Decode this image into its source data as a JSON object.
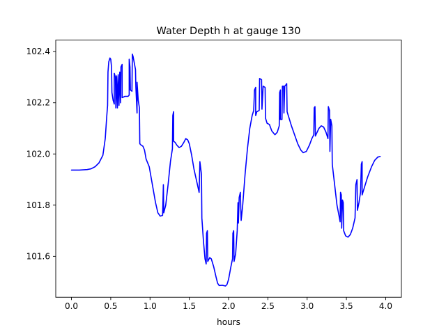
{
  "chart_data": {
    "type": "line",
    "title": "Water Depth h at gauge 130",
    "xlabel": "hours",
    "ylabel": "",
    "xlim": [
      -0.2,
      4.2
    ],
    "ylim": [
      101.44,
      102.445
    ],
    "grid": false,
    "xticks": [
      0.0,
      0.5,
      1.0,
      1.5,
      2.0,
      2.5,
      3.0,
      3.5,
      4.0
    ],
    "xtick_labels": [
      "0.0",
      "0.5",
      "1.0",
      "1.5",
      "2.0",
      "2.5",
      "3.0",
      "3.5",
      "4.0"
    ],
    "yticks": [
      101.6,
      101.8,
      102.0,
      102.2,
      102.4
    ],
    "ytick_labels": [
      "101.6",
      "101.8",
      "102.0",
      "102.2",
      "102.4"
    ],
    "series": [
      {
        "color": "#0000ff",
        "points": [
          [
            0.0,
            101.937
          ],
          [
            0.1,
            101.937
          ],
          [
            0.2,
            101.939
          ],
          [
            0.25,
            101.942
          ],
          [
            0.3,
            101.95
          ],
          [
            0.35,
            101.965
          ],
          [
            0.4,
            101.995
          ],
          [
            0.43,
            102.06
          ],
          [
            0.45,
            102.15
          ],
          [
            0.46,
            102.19
          ],
          [
            0.465,
            102.32
          ],
          [
            0.475,
            102.36
          ],
          [
            0.49,
            102.375
          ],
          [
            0.5,
            102.37
          ],
          [
            0.51,
            102.34
          ],
          [
            0.515,
            102.24
          ],
          [
            0.53,
            102.21
          ],
          [
            0.545,
            102.195
          ],
          [
            0.545,
            102.315
          ],
          [
            0.56,
            102.3
          ],
          [
            0.565,
            102.18
          ],
          [
            0.575,
            102.305
          ],
          [
            0.585,
            102.18
          ],
          [
            0.595,
            102.31
          ],
          [
            0.605,
            102.19
          ],
          [
            0.615,
            102.32
          ],
          [
            0.625,
            102.2
          ],
          [
            0.63,
            102.34
          ],
          [
            0.645,
            102.35
          ],
          [
            0.645,
            102.22
          ],
          [
            0.68,
            102.225
          ],
          [
            0.72,
            102.225
          ],
          [
            0.735,
            102.23
          ],
          [
            0.735,
            102.37
          ],
          [
            0.745,
            102.34
          ],
          [
            0.75,
            102.25
          ],
          [
            0.77,
            102.245
          ],
          [
            0.775,
            102.39
          ],
          [
            0.785,
            102.38
          ],
          [
            0.8,
            102.355
          ],
          [
            0.815,
            102.33
          ],
          [
            0.82,
            102.26
          ],
          [
            0.835,
            102.16
          ],
          [
            0.835,
            102.28
          ],
          [
            0.85,
            102.21
          ],
          [
            0.865,
            102.18
          ],
          [
            0.87,
            102.04
          ],
          [
            0.885,
            102.035
          ],
          [
            0.91,
            102.03
          ],
          [
            0.93,
            102.015
          ],
          [
            0.95,
            101.98
          ],
          [
            0.99,
            101.95
          ],
          [
            1.03,
            101.88
          ],
          [
            1.07,
            101.81
          ],
          [
            1.1,
            101.77
          ],
          [
            1.13,
            101.757
          ],
          [
            1.16,
            101.76
          ],
          [
            1.17,
            101.88
          ],
          [
            1.175,
            101.77
          ],
          [
            1.2,
            101.8
          ],
          [
            1.23,
            101.88
          ],
          [
            1.26,
            101.97
          ],
          [
            1.285,
            102.02
          ],
          [
            1.29,
            102.15
          ],
          [
            1.3,
            102.165
          ],
          [
            1.3,
            102.05
          ],
          [
            1.32,
            102.045
          ],
          [
            1.34,
            102.035
          ],
          [
            1.37,
            102.025
          ],
          [
            1.4,
            102.03
          ],
          [
            1.43,
            102.045
          ],
          [
            1.455,
            102.06
          ],
          [
            1.48,
            102.055
          ],
          [
            1.5,
            102.04
          ],
          [
            1.53,
            101.995
          ],
          [
            1.56,
            101.94
          ],
          [
            1.6,
            101.885
          ],
          [
            1.625,
            101.85
          ],
          [
            1.635,
            101.97
          ],
          [
            1.655,
            101.92
          ],
          [
            1.66,
            101.75
          ],
          [
            1.68,
            101.66
          ],
          [
            1.7,
            101.59
          ],
          [
            1.715,
            101.57
          ],
          [
            1.72,
            101.69
          ],
          [
            1.73,
            101.7
          ],
          [
            1.735,
            101.58
          ],
          [
            1.76,
            101.595
          ],
          [
            1.78,
            101.59
          ],
          [
            1.81,
            101.56
          ],
          [
            1.84,
            101.52
          ],
          [
            1.86,
            101.495
          ],
          [
            1.88,
            101.486
          ],
          [
            1.92,
            101.487
          ],
          [
            1.96,
            101.484
          ],
          [
            1.98,
            101.49
          ],
          [
            2.0,
            101.51
          ],
          [
            2.03,
            101.56
          ],
          [
            2.05,
            101.59
          ],
          [
            2.055,
            101.69
          ],
          [
            2.065,
            101.7
          ],
          [
            2.07,
            101.58
          ],
          [
            2.09,
            101.61
          ],
          [
            2.11,
            101.7
          ],
          [
            2.12,
            101.81
          ],
          [
            2.125,
            101.73
          ],
          [
            2.135,
            101.83
          ],
          [
            2.15,
            101.85
          ],
          [
            2.16,
            101.74
          ],
          [
            2.18,
            101.8
          ],
          [
            2.21,
            101.92
          ],
          [
            2.24,
            102.02
          ],
          [
            2.27,
            102.1
          ],
          [
            2.3,
            102.15
          ],
          [
            2.32,
            102.17
          ],
          [
            2.33,
            102.25
          ],
          [
            2.345,
            102.26
          ],
          [
            2.345,
            102.15
          ],
          [
            2.36,
            102.165
          ],
          [
            2.39,
            102.17
          ],
          [
            2.395,
            102.295
          ],
          [
            2.42,
            102.29
          ],
          [
            2.425,
            102.175
          ],
          [
            2.44,
            102.265
          ],
          [
            2.465,
            102.26
          ],
          [
            2.47,
            102.14
          ],
          [
            2.49,
            102.12
          ],
          [
            2.52,
            102.115
          ],
          [
            2.55,
            102.09
          ],
          [
            2.59,
            102.075
          ],
          [
            2.62,
            102.085
          ],
          [
            2.645,
            102.11
          ],
          [
            2.65,
            102.24
          ],
          [
            2.66,
            102.25
          ],
          [
            2.66,
            102.135
          ],
          [
            2.68,
            102.135
          ],
          [
            2.685,
            102.265
          ],
          [
            2.7,
            102.265
          ],
          [
            2.705,
            102.16
          ],
          [
            2.715,
            102.265
          ],
          [
            2.73,
            102.27
          ],
          [
            2.74,
            102.275
          ],
          [
            2.745,
            102.165
          ],
          [
            2.77,
            102.14
          ],
          [
            2.8,
            102.11
          ],
          [
            2.84,
            102.075
          ],
          [
            2.88,
            102.04
          ],
          [
            2.92,
            102.015
          ],
          [
            2.95,
            102.005
          ],
          [
            2.99,
            102.01
          ],
          [
            3.03,
            102.035
          ],
          [
            3.06,
            102.06
          ],
          [
            3.085,
            102.075
          ],
          [
            3.09,
            102.18
          ],
          [
            3.1,
            102.185
          ],
          [
            3.105,
            102.07
          ],
          [
            3.12,
            102.08
          ],
          [
            3.15,
            102.1
          ],
          [
            3.18,
            102.11
          ],
          [
            3.21,
            102.105
          ],
          [
            3.24,
            102.085
          ],
          [
            3.265,
            102.06
          ],
          [
            3.27,
            102.185
          ],
          [
            3.285,
            102.17
          ],
          [
            3.29,
            102.01
          ],
          [
            3.3,
            102.135
          ],
          [
            3.315,
            102.11
          ],
          [
            3.32,
            101.96
          ],
          [
            3.35,
            101.88
          ],
          [
            3.38,
            101.8
          ],
          [
            3.405,
            101.76
          ],
          [
            3.42,
            101.735
          ],
          [
            3.425,
            101.85
          ],
          [
            3.435,
            101.84
          ],
          [
            3.44,
            101.71
          ],
          [
            3.45,
            101.82
          ],
          [
            3.46,
            101.81
          ],
          [
            3.465,
            101.7
          ],
          [
            3.49,
            101.68
          ],
          [
            3.52,
            101.675
          ],
          [
            3.55,
            101.685
          ],
          [
            3.58,
            101.71
          ],
          [
            3.61,
            101.75
          ],
          [
            3.62,
            101.88
          ],
          [
            3.635,
            101.9
          ],
          [
            3.64,
            101.78
          ],
          [
            3.66,
            101.81
          ],
          [
            3.68,
            101.85
          ],
          [
            3.69,
            101.96
          ],
          [
            3.7,
            101.97
          ],
          [
            3.7,
            101.84
          ],
          [
            3.73,
            101.87
          ],
          [
            3.77,
            101.91
          ],
          [
            3.82,
            101.95
          ],
          [
            3.86,
            101.975
          ],
          [
            3.9,
            101.988
          ],
          [
            3.93,
            101.99
          ]
        ]
      }
    ]
  }
}
